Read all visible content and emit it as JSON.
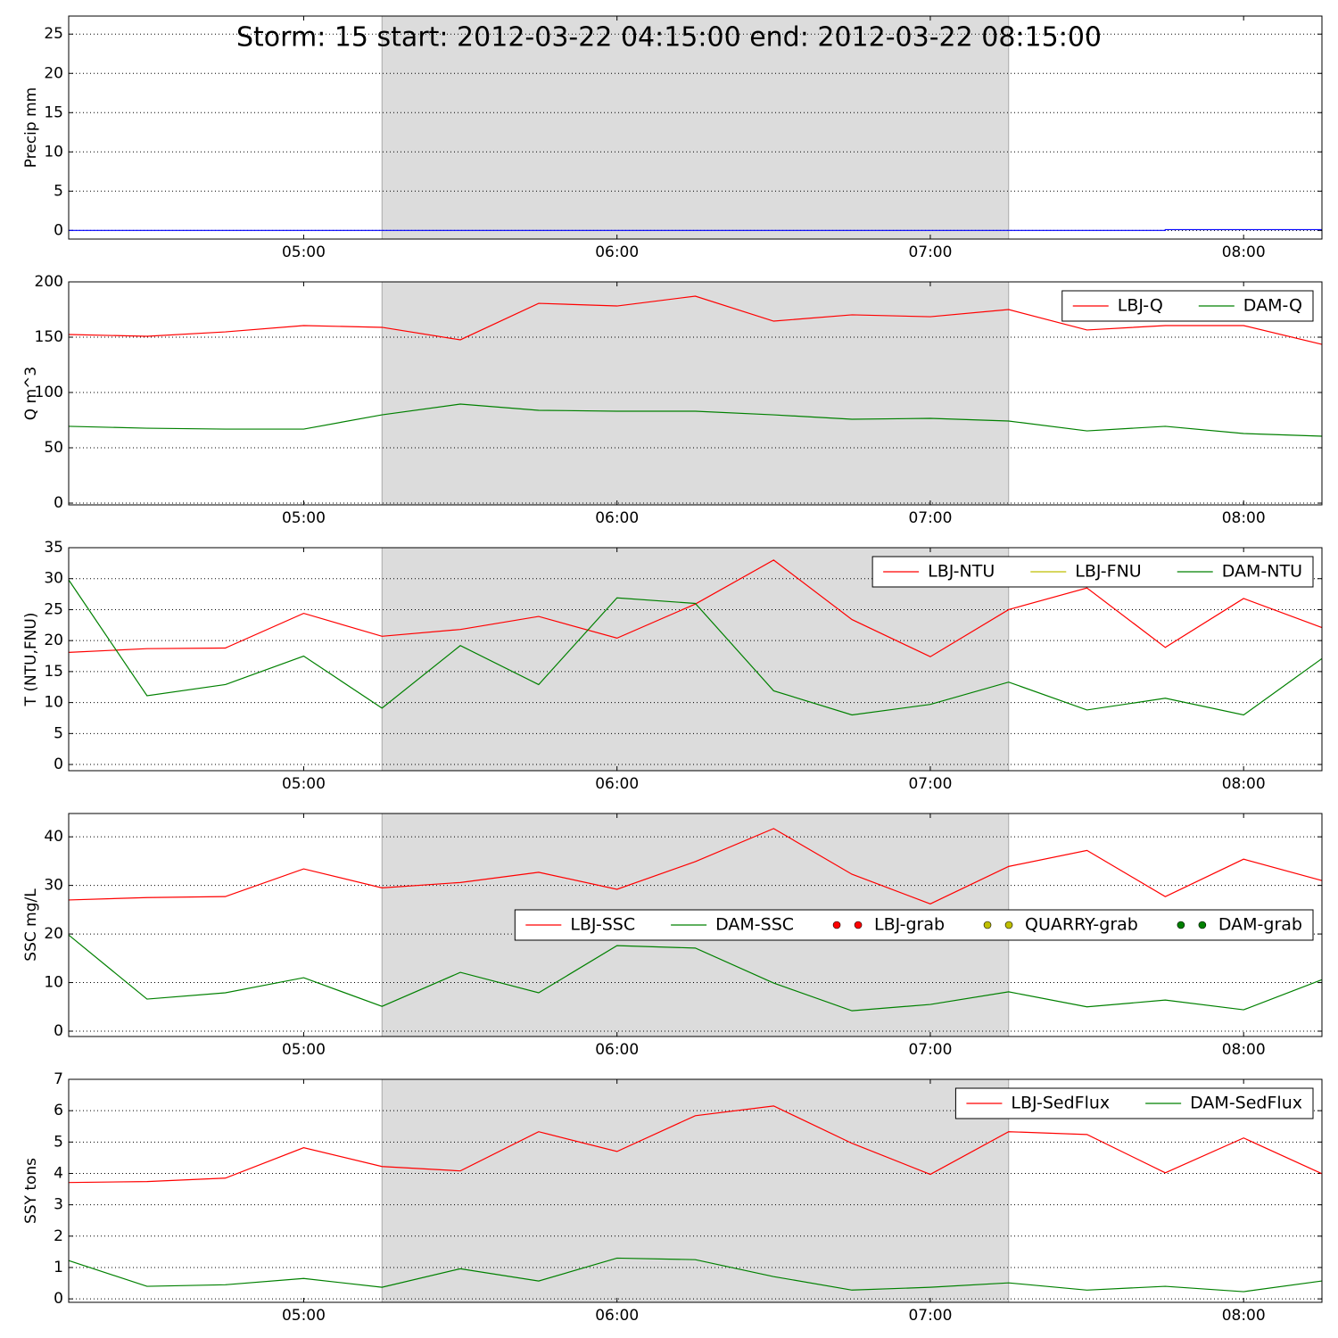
{
  "chart_data": [
    {
      "type": "line",
      "title": "Storm: 15 start: 2012-03-22 04:15:00 end: 2012-03-22 08:15:00",
      "ylabel": "Precip mm",
      "x": [
        "04:15",
        "04:30",
        "04:45",
        "05:00",
        "05:15",
        "05:30",
        "05:45",
        "06:00",
        "06:15",
        "06:30",
        "06:45",
        "07:00",
        "07:15",
        "07:30",
        "07:45",
        "08:00",
        "08:15"
      ],
      "xlim": [
        "04:15",
        "08:15"
      ],
      "xticks": [
        "05:00",
        "06:00",
        "07:00",
        "08:00"
      ],
      "highlight": [
        "05:15",
        "07:15"
      ],
      "ylim": [
        -1.1,
        27.3
      ],
      "yticks": [
        0,
        5,
        10,
        15,
        20,
        25
      ],
      "grid": true,
      "legend": false,
      "series": [
        {
          "color": "#0000ff",
          "drawstyle": "steps-post",
          "values": [
            0,
            0,
            0,
            0,
            0,
            0,
            0,
            0,
            0,
            0,
            0,
            0,
            0,
            0,
            0.1,
            0.1,
            0.1
          ]
        }
      ]
    },
    {
      "type": "line",
      "ylabel": "Q m^3",
      "x": [
        "04:15",
        "04:30",
        "04:45",
        "05:00",
        "05:15",
        "05:30",
        "05:45",
        "06:00",
        "06:15",
        "06:30",
        "06:45",
        "07:00",
        "07:15",
        "07:30",
        "07:45",
        "08:00",
        "08:15"
      ],
      "xlim": [
        "04:15",
        "08:15"
      ],
      "xticks": [
        "05:00",
        "06:00",
        "07:00",
        "08:00"
      ],
      "highlight": [
        "05:15",
        "07:15"
      ],
      "ylim": [
        -1.6,
        200
      ],
      "yticks": [
        0,
        50,
        100,
        150,
        200
      ],
      "grid": true,
      "legend": "upper right",
      "series": [
        {
          "name": "LBJ-Q",
          "color": "#ff0000",
          "values": [
            152.4,
            150.8,
            154.8,
            160.5,
            158.9,
            147.6,
            180.6,
            178.2,
            187.1,
            164.5,
            170.2,
            168.5,
            175,
            156.5,
            160.5,
            160.5,
            143.5
          ]
        },
        {
          "name": "DAM-Q",
          "color": "#008000",
          "values": [
            69.4,
            67.7,
            66.9,
            66.9,
            79.8,
            89.5,
            83.9,
            83.1,
            83.1,
            79.8,
            75.8,
            76.6,
            74.2,
            65.3,
            69.4,
            62.9,
            60.5
          ]
        }
      ]
    },
    {
      "type": "line",
      "ylabel": "T (NTU,FNU)",
      "x": [
        "04:15",
        "04:30",
        "04:45",
        "05:00",
        "05:15",
        "05:30",
        "05:45",
        "06:00",
        "06:15",
        "06:30",
        "06:45",
        "07:00",
        "07:15",
        "07:30",
        "07:45",
        "08:00",
        "08:15"
      ],
      "xlim": [
        "04:15",
        "08:15"
      ],
      "xticks": [
        "05:00",
        "06:00",
        "07:00",
        "08:00"
      ],
      "highlight": [
        "05:15",
        "07:15"
      ],
      "ylim": [
        -1,
        35
      ],
      "yticks": [
        0,
        5,
        10,
        15,
        20,
        25,
        30,
        35
      ],
      "grid": true,
      "legend": "upper right",
      "series": [
        {
          "name": "LBJ-NTU",
          "color": "#ff0000",
          "values": [
            18.1,
            18.7,
            18.8,
            24.4,
            20.7,
            21.8,
            23.9,
            20.4,
            25.9,
            33.0,
            23.4,
            17.4,
            25.0,
            28.5,
            18.9,
            26.8,
            22.1
          ]
        },
        {
          "name": "LBJ-FNU",
          "color": "#bfbf00",
          "values": [
            null,
            null,
            null,
            null,
            null,
            null,
            null,
            null,
            null,
            null,
            null,
            null,
            null,
            null,
            null,
            null,
            null
          ]
        },
        {
          "name": "DAM-NTU",
          "color": "#008000",
          "values": [
            29.8,
            11.1,
            12.9,
            17.5,
            9.1,
            19.2,
            12.9,
            26.9,
            26.0,
            11.9,
            8.0,
            9.7,
            13.3,
            8.8,
            10.7,
            8.0,
            17.1
          ]
        }
      ]
    },
    {
      "type": "line",
      "ylabel": "SSC mg/L",
      "x": [
        "04:15",
        "04:30",
        "04:45",
        "05:00",
        "05:15",
        "05:30",
        "05:45",
        "06:00",
        "06:15",
        "06:30",
        "06:45",
        "07:00",
        "07:15",
        "07:30",
        "07:45",
        "08:00",
        "08:15"
      ],
      "xlim": [
        "04:15",
        "08:15"
      ],
      "xticks": [
        "05:00",
        "06:00",
        "07:00",
        "08:00"
      ],
      "highlight": [
        "05:15",
        "07:15"
      ],
      "ylim": [
        -1.1,
        44.8
      ],
      "yticks": [
        0,
        10,
        20,
        30,
        40
      ],
      "grid": true,
      "legend": "center right",
      "series": [
        {
          "name": "LBJ-SSC",
          "color": "#ff0000",
          "values": [
            27.0,
            27.5,
            27.7,
            33.4,
            29.5,
            30.6,
            32.7,
            29.2,
            34.9,
            41.7,
            32.3,
            26.2,
            33.9,
            37.2,
            27.7,
            35.4,
            31.0
          ]
        },
        {
          "name": "DAM-SSC",
          "color": "#008000",
          "values": [
            19.8,
            6.6,
            7.9,
            11.0,
            5.1,
            12.1,
            7.9,
            17.6,
            17.1,
            9.9,
            4.2,
            5.5,
            8.1,
            5.0,
            6.4,
            4.4,
            10.6
          ]
        },
        {
          "name": "LBJ-grab",
          "color": "#ff0000",
          "marker": "o",
          "values": [
            null,
            null,
            null,
            null,
            null,
            null,
            null,
            null,
            null,
            null,
            null,
            null,
            null,
            null,
            null,
            null,
            null
          ]
        },
        {
          "name": "QUARRY-grab",
          "color": "#bfbf00",
          "marker": "o",
          "values": [
            null,
            null,
            null,
            null,
            null,
            null,
            null,
            null,
            null,
            null,
            null,
            null,
            null,
            null,
            null,
            null,
            null
          ]
        },
        {
          "name": "DAM-grab",
          "color": "#008000",
          "marker": "o",
          "values": [
            null,
            null,
            null,
            null,
            null,
            null,
            null,
            null,
            null,
            null,
            null,
            null,
            null,
            null,
            null,
            null,
            null
          ]
        }
      ]
    },
    {
      "type": "line",
      "ylabel": "SSY tons",
      "x": [
        "04:15",
        "04:30",
        "04:45",
        "05:00",
        "05:15",
        "05:30",
        "05:45",
        "06:00",
        "06:15",
        "06:30",
        "06:45",
        "07:00",
        "07:15",
        "07:30",
        "07:45",
        "08:00",
        "08:15"
      ],
      "xlim": [
        "04:15",
        "08:15"
      ],
      "xticks": [
        "05:00",
        "06:00",
        "07:00",
        "08:00"
      ],
      "highlight": [
        "05:15",
        "07:15"
      ],
      "ylim": [
        -0.11,
        7.0
      ],
      "yticks": [
        0,
        1,
        2,
        3,
        4,
        5,
        6,
        7
      ],
      "grid": true,
      "legend": "upper right",
      "series": [
        {
          "name": "LBJ-SedFlux",
          "color": "#ff0000",
          "values": [
            3.71,
            3.74,
            3.85,
            4.82,
            4.22,
            4.08,
            5.33,
            4.7,
            5.84,
            6.15,
            4.96,
            3.97,
            5.33,
            5.24,
            4.02,
            5.13,
            3.99
          ]
        },
        {
          "name": "DAM-SedFlux",
          "color": "#008000",
          "values": [
            1.22,
            0.4,
            0.45,
            0.65,
            0.37,
            0.96,
            0.57,
            1.3,
            1.25,
            0.71,
            0.28,
            0.37,
            0.51,
            0.28,
            0.4,
            0.23,
            0.57
          ]
        }
      ]
    }
  ]
}
